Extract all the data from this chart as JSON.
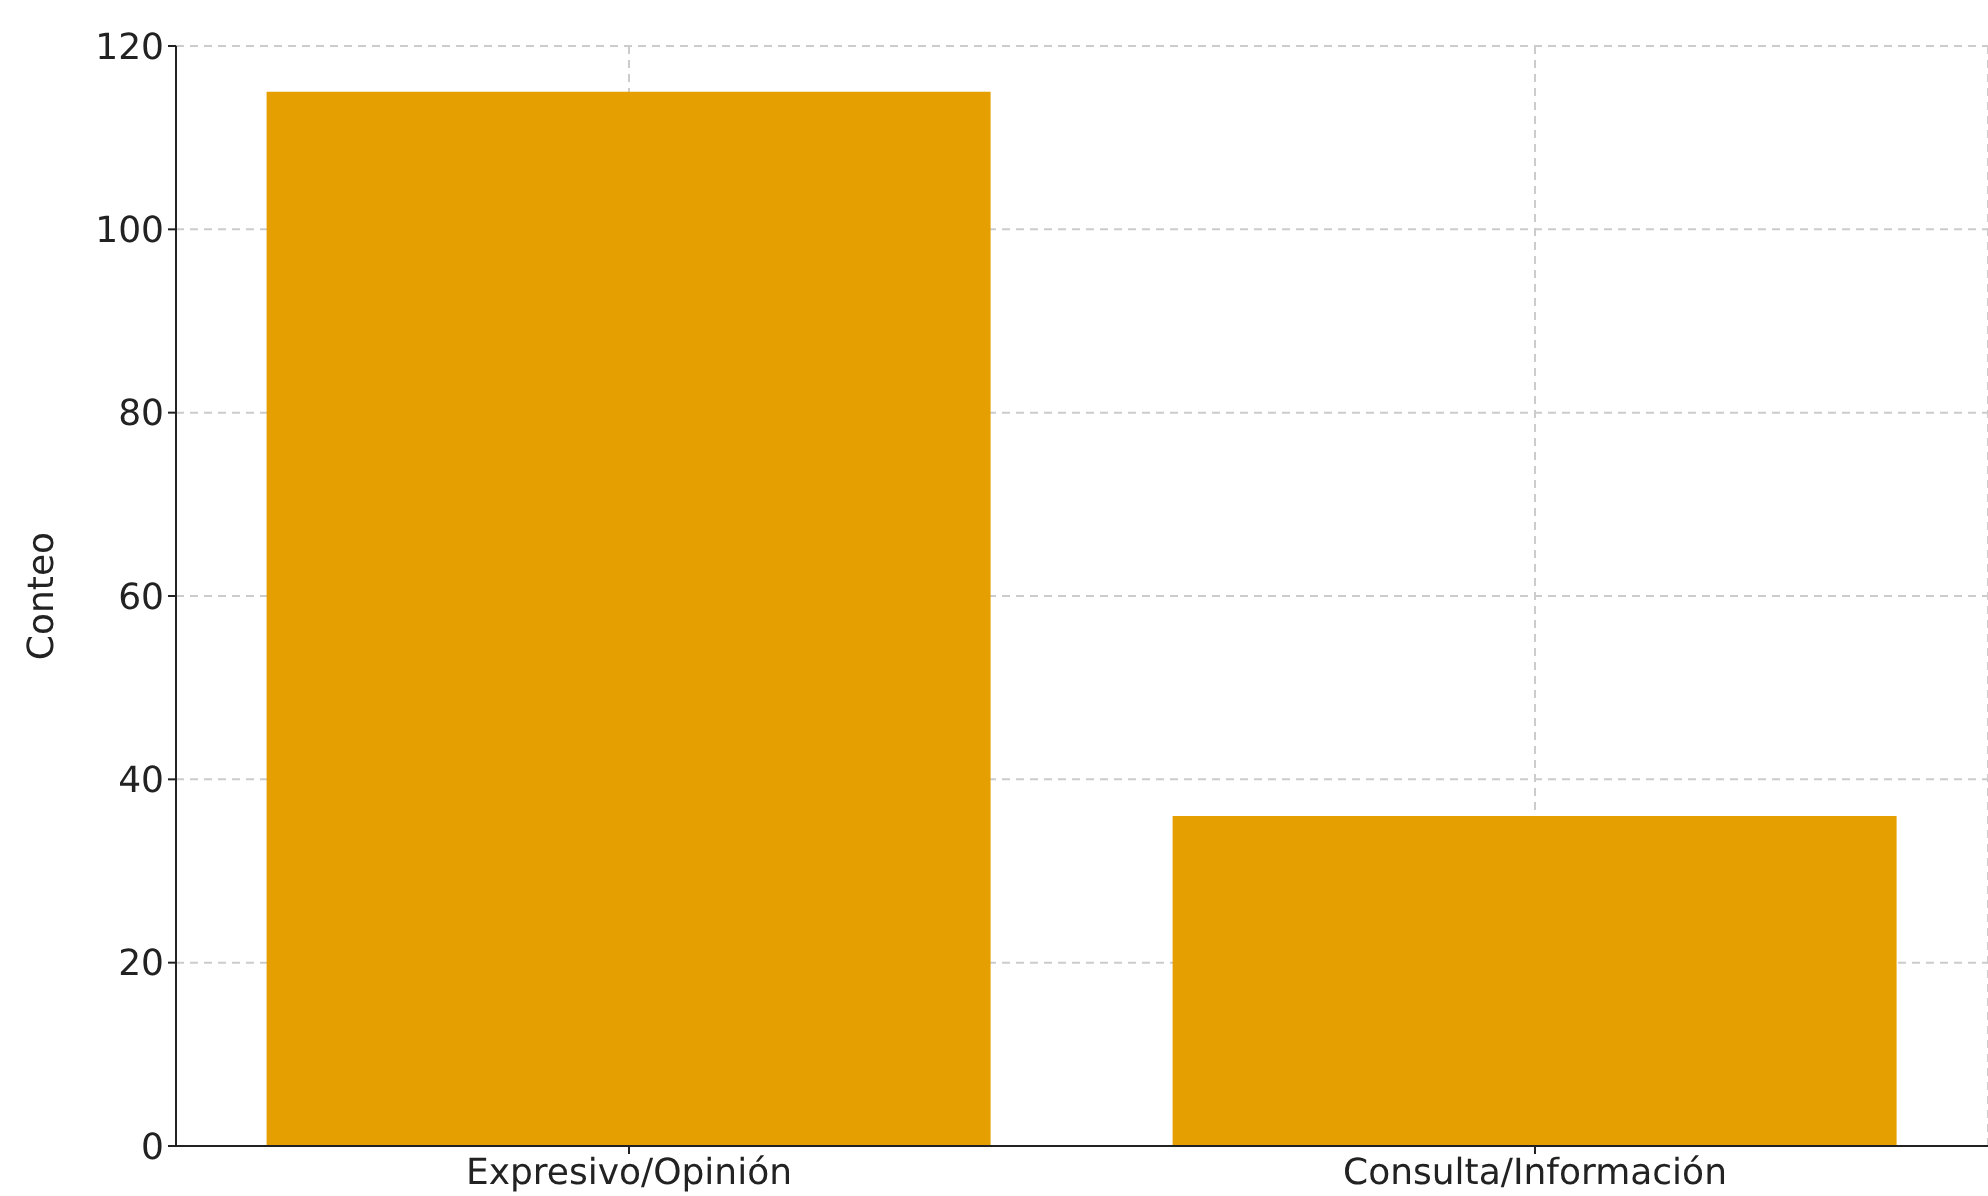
{
  "chart_data": {
    "type": "bar",
    "ylabel": "Conteo",
    "categories": [
      "Expresivo/Opinión",
      "Consulta/Información"
    ],
    "values": [
      115,
      36
    ],
    "color": "#e69f00",
    "ylim": [
      0,
      120
    ],
    "yticks": [
      0,
      20,
      40,
      60,
      80,
      100,
      120
    ],
    "grid": true
  }
}
